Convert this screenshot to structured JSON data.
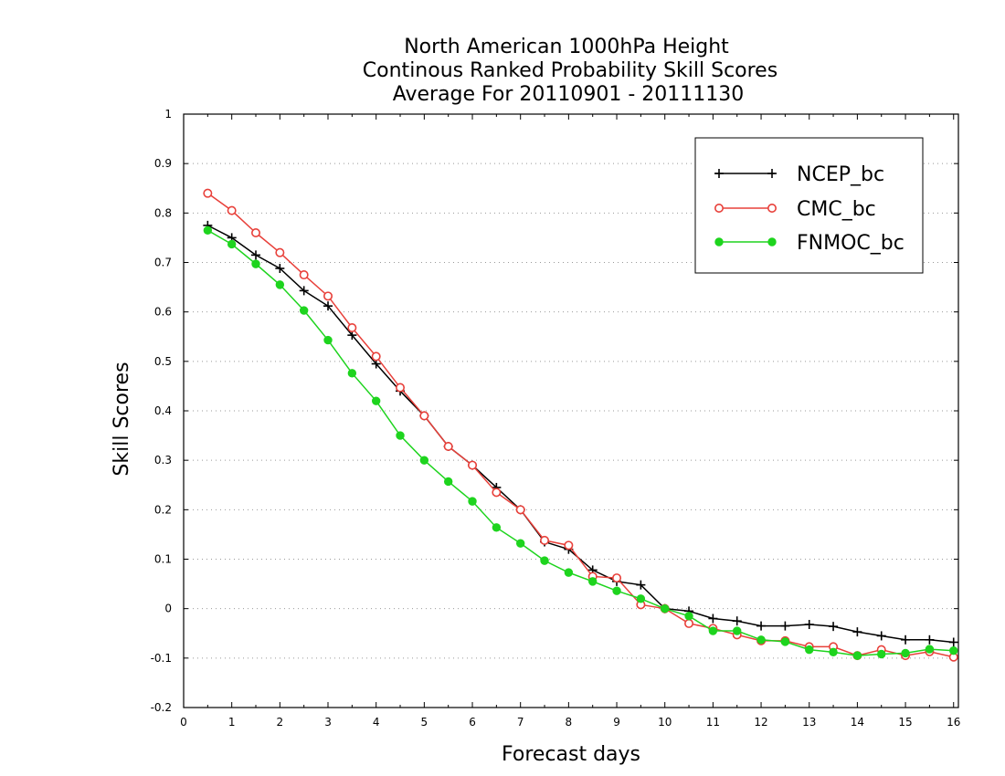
{
  "chart_data": {
    "type": "line",
    "title": [
      "North American 1000hPa Height",
      "Continous Ranked Probability Skill Scores",
      "Average For 20110901 - 20111130"
    ],
    "xlabel": "Forecast days",
    "ylabel": "Skill Scores",
    "xlim": [
      0,
      16.1
    ],
    "ylim": [
      -0.2,
      1
    ],
    "xticks": [
      0,
      1,
      2,
      3,
      4,
      5,
      6,
      7,
      8,
      9,
      10,
      11,
      12,
      13,
      14,
      15,
      16
    ],
    "yticks": [
      -0.2,
      -0.1,
      0,
      0.1,
      0.2,
      0.3,
      0.4,
      0.5,
      0.6,
      0.7,
      0.8,
      0.9,
      1
    ],
    "grid": true,
    "legend_position": "top-right",
    "x": [
      0.5,
      1,
      1.5,
      2,
      2.5,
      3,
      3.5,
      4,
      4.5,
      5,
      5.5,
      6,
      6.5,
      7,
      7.5,
      8,
      8.5,
      9,
      9.5,
      10,
      10.5,
      11,
      11.5,
      12,
      12.5,
      13,
      13.5,
      14,
      14.5,
      15,
      15.5,
      16
    ],
    "series": [
      {
        "name": "NCEP_bc",
        "color": "#000000",
        "marker": "plus",
        "values": [
          0.775,
          0.75,
          0.715,
          0.688,
          0.643,
          0.612,
          0.553,
          0.495,
          0.44,
          0.39,
          0.328,
          0.29,
          0.245,
          0.2,
          0.135,
          0.12,
          0.078,
          0.055,
          0.048,
          0.0,
          -0.005,
          -0.02,
          -0.025,
          -0.035,
          -0.035,
          -0.032,
          -0.036,
          -0.047,
          -0.055,
          -0.063,
          -0.063,
          -0.068
        ]
      },
      {
        "name": "CMC_bc",
        "color": "#e8403a",
        "marker": "open-circle",
        "values": [
          0.84,
          0.805,
          0.76,
          0.72,
          0.675,
          0.632,
          0.568,
          0.51,
          0.447,
          0.39,
          0.328,
          0.29,
          0.235,
          0.2,
          0.138,
          0.128,
          0.065,
          0.062,
          0.008,
          0.0,
          -0.03,
          -0.04,
          -0.053,
          -0.065,
          -0.065,
          -0.077,
          -0.077,
          -0.095,
          -0.083,
          -0.095,
          -0.087,
          -0.098
        ]
      },
      {
        "name": "FNMOC_bc",
        "color": "#1ed41e",
        "marker": "filled-circle",
        "values": [
          0.765,
          0.737,
          0.697,
          0.655,
          0.603,
          0.543,
          0.476,
          0.42,
          0.35,
          0.3,
          0.257,
          0.217,
          0.164,
          0.132,
          0.097,
          0.073,
          0.055,
          0.036,
          0.02,
          0.0,
          -0.015,
          -0.045,
          -0.045,
          -0.063,
          -0.067,
          -0.083,
          -0.088,
          -0.095,
          -0.092,
          -0.09,
          -0.082,
          -0.085
        ]
      }
    ]
  }
}
